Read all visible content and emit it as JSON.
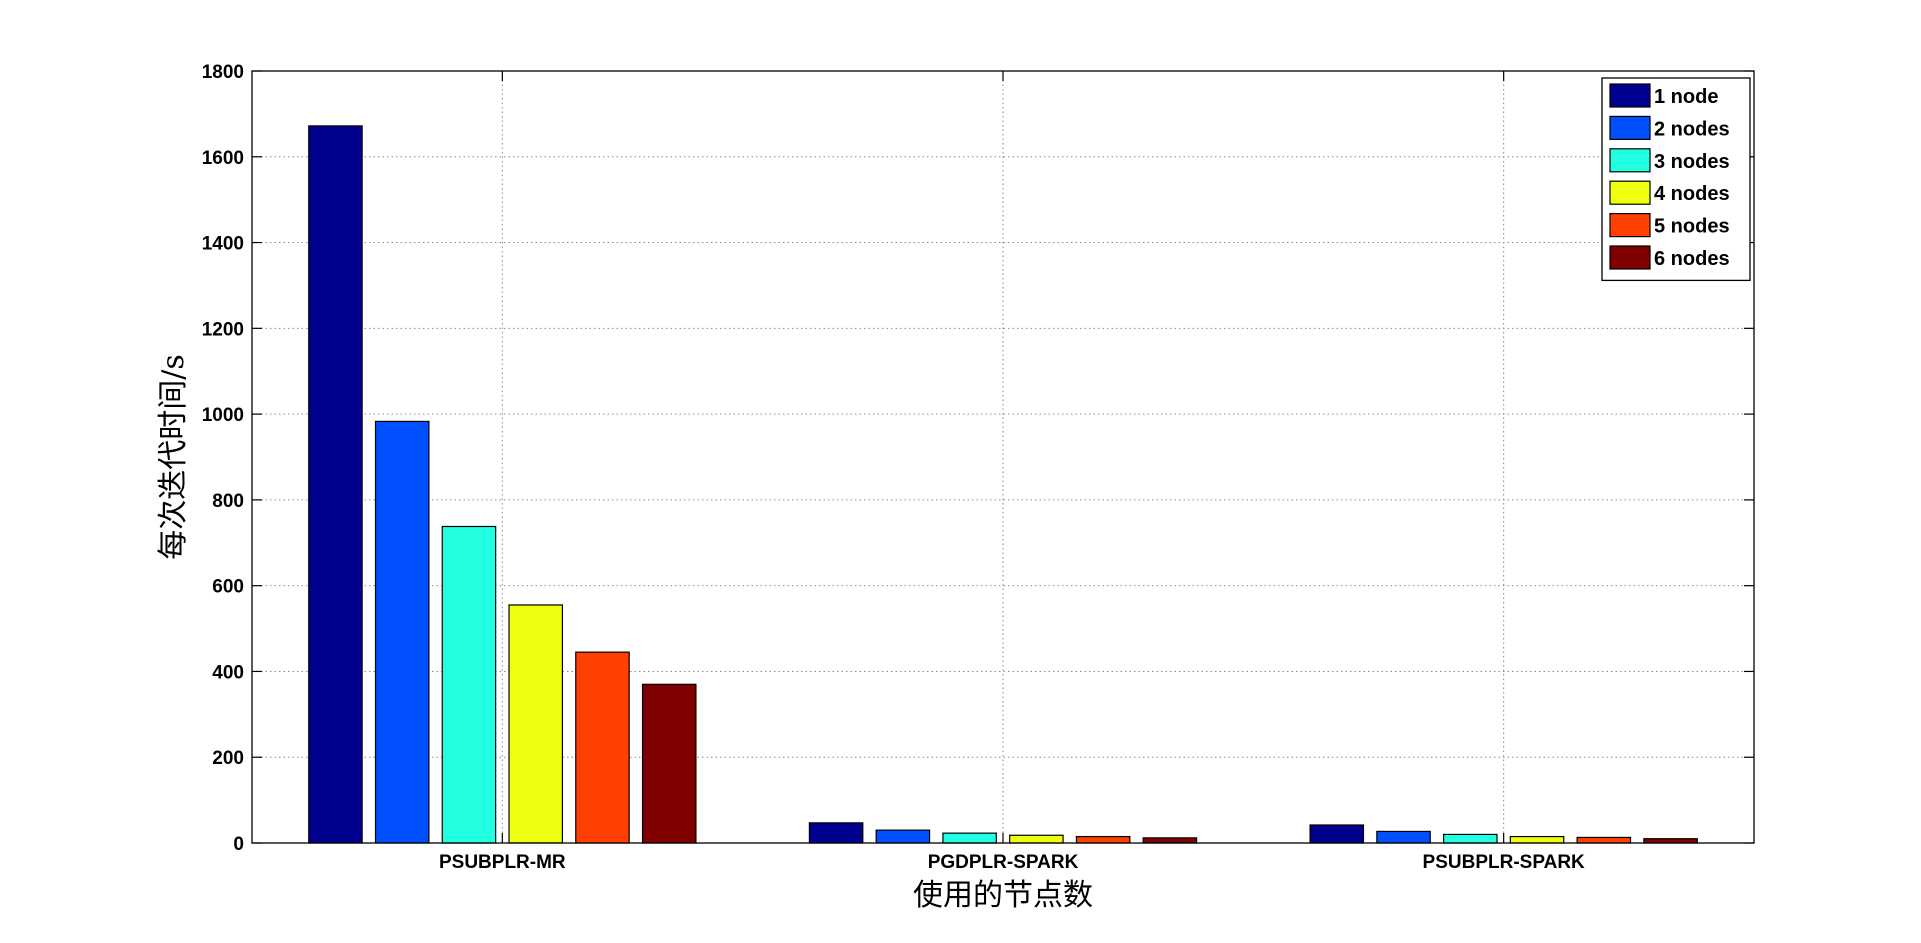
{
  "chart_data": {
    "type": "bar",
    "title": "",
    "xlabel": "使用的节点数",
    "ylabel": "每次迭代时间/s",
    "categories": [
      "PSUBPLR-MR",
      "PGDPLR-SPARK",
      "PSUBPLR-SPARK"
    ],
    "ylim": [
      0,
      1800
    ],
    "yticks": [
      0,
      200,
      400,
      600,
      800,
      1000,
      1200,
      1400,
      1600,
      1800
    ],
    "grid": true,
    "legend_position": "top-right",
    "series": [
      {
        "name": "1 node",
        "color": "#00008f",
        "values": [
          1672,
          47,
          42
        ]
      },
      {
        "name": "2 nodes",
        "color": "#0050ff",
        "values": [
          983,
          30,
          27
        ]
      },
      {
        "name": "3 nodes",
        "color": "#20ffdf",
        "values": [
          738,
          23,
          20
        ]
      },
      {
        "name": "4 nodes",
        "color": "#efff10",
        "values": [
          555,
          18,
          15
        ]
      },
      {
        "name": "5 nodes",
        "color": "#ff4000",
        "values": [
          445,
          15,
          13
        ]
      },
      {
        "name": "6 nodes",
        "color": "#800000",
        "values": [
          370,
          12,
          10
        ]
      }
    ]
  }
}
